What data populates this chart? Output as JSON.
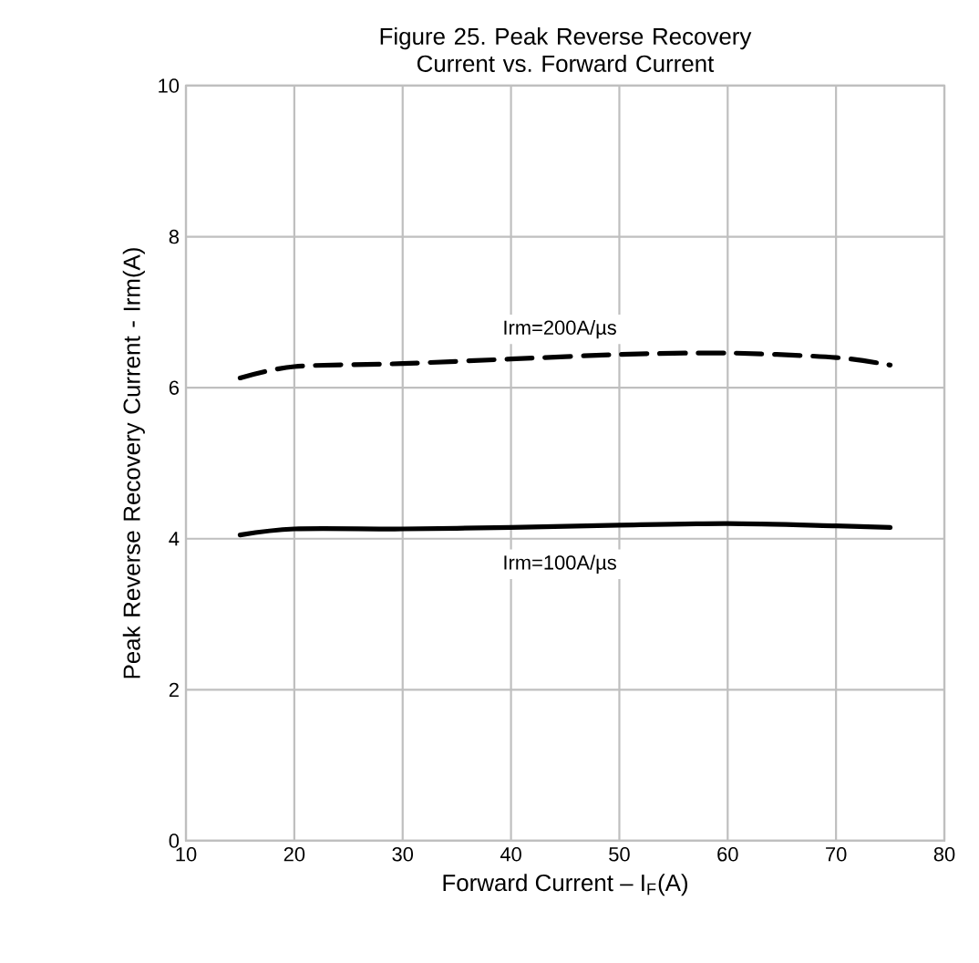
{
  "chart_data": {
    "type": "line",
    "title": "Figure 25. Peak Reverse Recovery Current vs. Forward Current",
    "xlabel": "Forward Current  –  I$_{F}$(A)",
    "ylabel": "Peak Reverse Recovery Current - Irm(A)",
    "xlim": [
      10,
      80
    ],
    "ylim": [
      0,
      10
    ],
    "xticks": [
      10,
      20,
      30,
      40,
      50,
      60,
      70,
      80
    ],
    "yticks": [
      0,
      2,
      4,
      6,
      8,
      10
    ],
    "grid": true,
    "legend": false,
    "marker": "none",
    "series": [
      {
        "name": "Irm=200A/µs",
        "color": "#000000",
        "line_style": "dashed",
        "x": [
          15,
          20,
          30,
          40,
          50,
          60,
          70,
          75
        ],
        "values": [
          6.13,
          6.28,
          6.32,
          6.38,
          6.44,
          6.46,
          6.4,
          6.3
        ]
      },
      {
        "name": "Irm=100A/µs",
        "color": "#000000",
        "line_style": "solid",
        "x": [
          15,
          20,
          30,
          40,
          50,
          60,
          70,
          75
        ],
        "values": [
          4.05,
          4.13,
          4.13,
          4.15,
          4.18,
          4.2,
          4.17,
          4.15
        ]
      }
    ]
  }
}
